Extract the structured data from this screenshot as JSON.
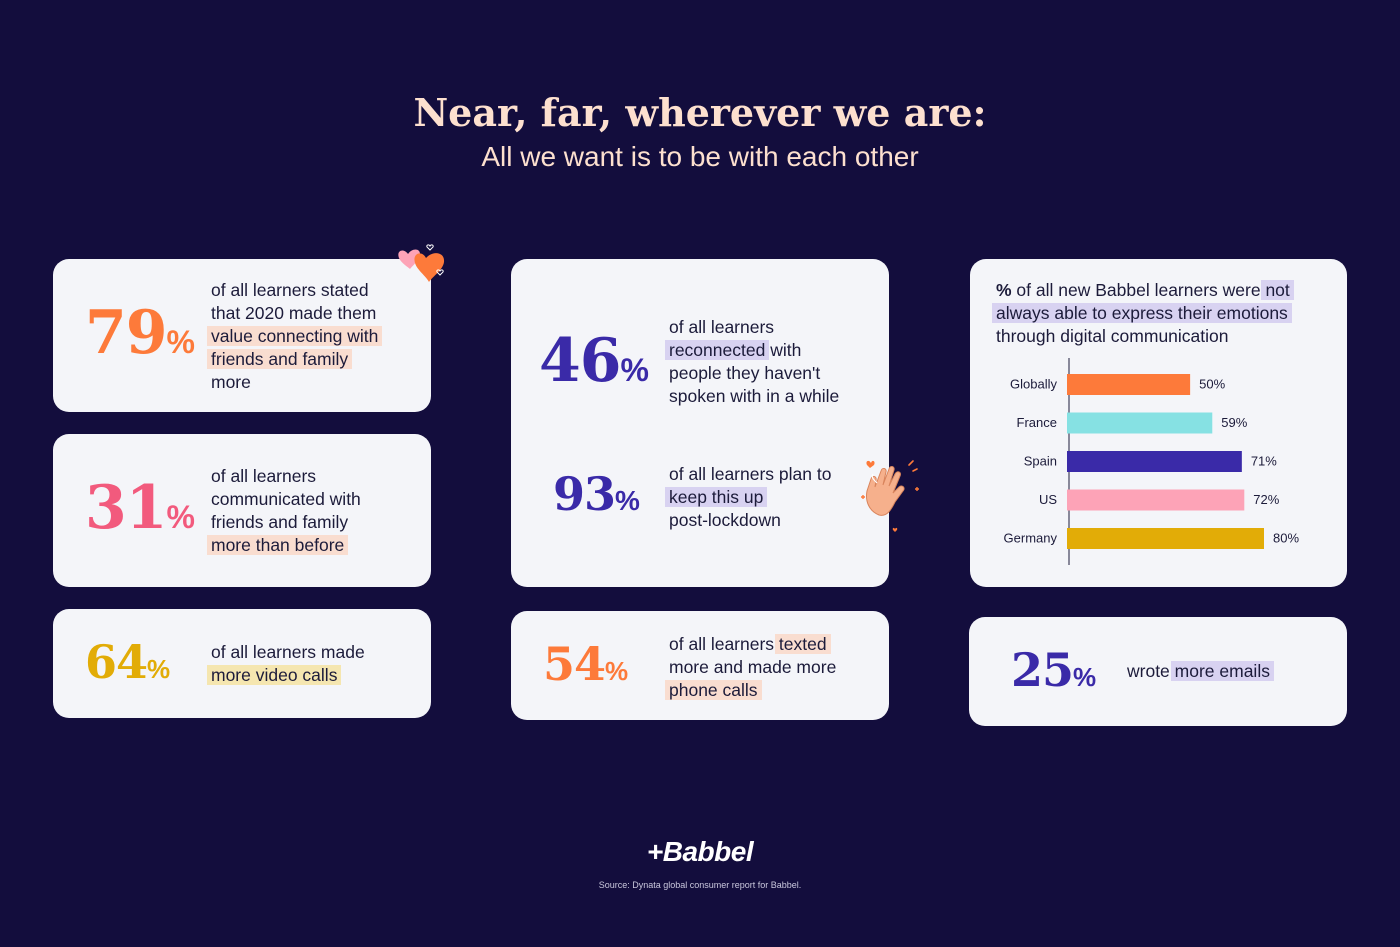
{
  "header": {
    "title": "Near, far, wherever we are:",
    "subtitle": "All we want is to be with each other"
  },
  "colors": {
    "background": "#130d3d",
    "card": "#f4f5f9",
    "orange": "#fd7a3a",
    "pink": "#f25a7d",
    "gold": "#e2ac07",
    "indigo": "#3a2aa8",
    "title_peach": "#fde0cf"
  },
  "stats": {
    "s79": {
      "value": "79",
      "unit": "%",
      "t1": "of all learners stated",
      "t2": "that 2020 made them",
      "t3": "value connecting with",
      "t4": "friends and family",
      "t5": "more"
    },
    "s31": {
      "value": "31",
      "unit": "%",
      "t1": "of all learners",
      "t2": "communicated with",
      "t3": "friends and family",
      "t4": "more than before"
    },
    "s64": {
      "value": "64",
      "unit": "%",
      "t1": "of all learners made",
      "t2": "more video calls"
    },
    "s46": {
      "value": "46",
      "unit": "%",
      "t1": "of all learners",
      "t2": "reconnected",
      "t2b": " with",
      "t3": "people they haven't",
      "t4": "spoken with in a while"
    },
    "s93": {
      "value": "93",
      "unit": "%",
      "t1": "of all learners plan to",
      "t2": "keep this up",
      "t3": "post-lockdown"
    },
    "s54": {
      "value": "54",
      "unit": "%",
      "t1a": "of all learners ",
      "t1b": "texted",
      "t2": "more and made more",
      "t3": "phone calls"
    },
    "s25": {
      "value": "25",
      "unit": "%",
      "t1a": "wrote ",
      "t1b": "more emails"
    }
  },
  "chart_text": {
    "line1_bold": "%",
    "line1_rest": " of all new Babbel learners were ",
    "line1_hl": "not",
    "line2_hl": "always able to express their emotions",
    "line3": "through digital communication"
  },
  "chart_data": {
    "type": "bar",
    "orientation": "horizontal",
    "title": "% of all new Babbel learners were not always able to express their emotions through digital communication",
    "categories": [
      "Globally",
      "France",
      "Spain",
      "US",
      "Germany"
    ],
    "values": [
      50,
      59,
      71,
      72,
      80
    ],
    "value_labels": [
      "50%",
      "59%",
      "71%",
      "72%",
      "80%"
    ],
    "colors": [
      "#fd7a3a",
      "#86e1e3",
      "#3a2aa8",
      "#fda3b7",
      "#e2ac07"
    ],
    "xlim": [
      0,
      80
    ],
    "grid": false,
    "legend": "none"
  },
  "footer": {
    "logo": "+Babbel",
    "source": "Source: Dynata global consumer report for Babbel."
  }
}
